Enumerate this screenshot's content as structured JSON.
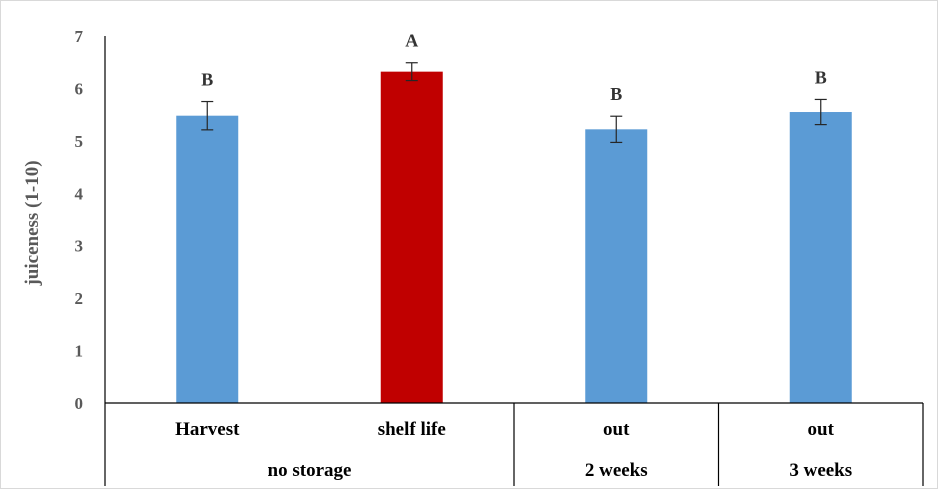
{
  "chart_data": {
    "type": "bar",
    "ylabel": "juiceness (1-10)",
    "xlabel": "",
    "ylim": [
      0,
      7
    ],
    "yticks": [
      "0",
      "1",
      "2",
      "3",
      "4",
      "5",
      "6",
      "7"
    ],
    "grid": false,
    "legend": "none",
    "categories": [
      "Harvest",
      "shelf life",
      "out",
      "out"
    ],
    "groups": [
      {
        "label": "no storage",
        "span": [
          0,
          1
        ]
      },
      {
        "label": "2 weeks",
        "span": [
          2,
          2
        ]
      },
      {
        "label": "3 weeks",
        "span": [
          3,
          3
        ]
      }
    ],
    "values": [
      5.48,
      6.32,
      5.22,
      5.55
    ],
    "errors": [
      0.27,
      0.17,
      0.25,
      0.24
    ],
    "significance": [
      "B",
      "A",
      "B",
      "B"
    ],
    "colors": [
      "#5b9bd5",
      "#c00000",
      "#5b9bd5",
      "#5b9bd5"
    ]
  }
}
